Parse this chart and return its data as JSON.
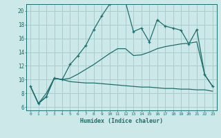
{
  "xlabel": "Humidex (Indice chaleur)",
  "background_color": "#cce8e8",
  "grid_color": "#aacccc",
  "line_color": "#1a6e6e",
  "xlim": [
    -0.5,
    23.5
  ],
  "ylim": [
    5.5,
    21.0
  ],
  "x_ticks": [
    0,
    1,
    2,
    3,
    4,
    5,
    6,
    7,
    8,
    9,
    10,
    11,
    12,
    13,
    14,
    15,
    16,
    17,
    18,
    19,
    20,
    21,
    22,
    23
  ],
  "y_ticks": [
    6,
    8,
    10,
    12,
    14,
    16,
    18,
    20
  ],
  "curve1_x": [
    0,
    1,
    2,
    3,
    4,
    5,
    6,
    7,
    8,
    9,
    10,
    11,
    12,
    13,
    14,
    15,
    16,
    17,
    18,
    19,
    20,
    21,
    22,
    23
  ],
  "curve1_y": [
    9.0,
    6.5,
    7.5,
    10.2,
    10.0,
    12.2,
    13.5,
    15.0,
    17.3,
    19.3,
    21.0,
    21.3,
    21.3,
    17.0,
    17.5,
    15.5,
    18.7,
    17.8,
    17.5,
    17.2,
    15.2,
    17.3,
    10.7,
    9.0
  ],
  "curve2_x": [
    0,
    1,
    2,
    3,
    4,
    5,
    6,
    7,
    8,
    9,
    10,
    11,
    12,
    13,
    14,
    15,
    16,
    17,
    18,
    19,
    20,
    21,
    22,
    23
  ],
  "curve2_y": [
    9.0,
    6.5,
    7.5,
    10.2,
    10.0,
    9.7,
    9.6,
    9.5,
    9.5,
    9.4,
    9.3,
    9.2,
    9.1,
    9.0,
    8.9,
    8.9,
    8.8,
    8.7,
    8.7,
    8.6,
    8.6,
    8.5,
    8.5,
    8.3
  ],
  "curve3_x": [
    0,
    1,
    2,
    3,
    4,
    5,
    6,
    7,
    8,
    9,
    10,
    11,
    12,
    13,
    14,
    15,
    16,
    17,
    18,
    19,
    20,
    21,
    22,
    23
  ],
  "curve3_y": [
    9.0,
    6.5,
    8.0,
    10.2,
    10.0,
    10.2,
    10.8,
    11.5,
    12.2,
    13.0,
    13.8,
    14.5,
    14.5,
    13.5,
    13.6,
    14.0,
    14.5,
    14.8,
    15.0,
    15.2,
    15.3,
    15.5,
    10.7,
    9.0
  ]
}
